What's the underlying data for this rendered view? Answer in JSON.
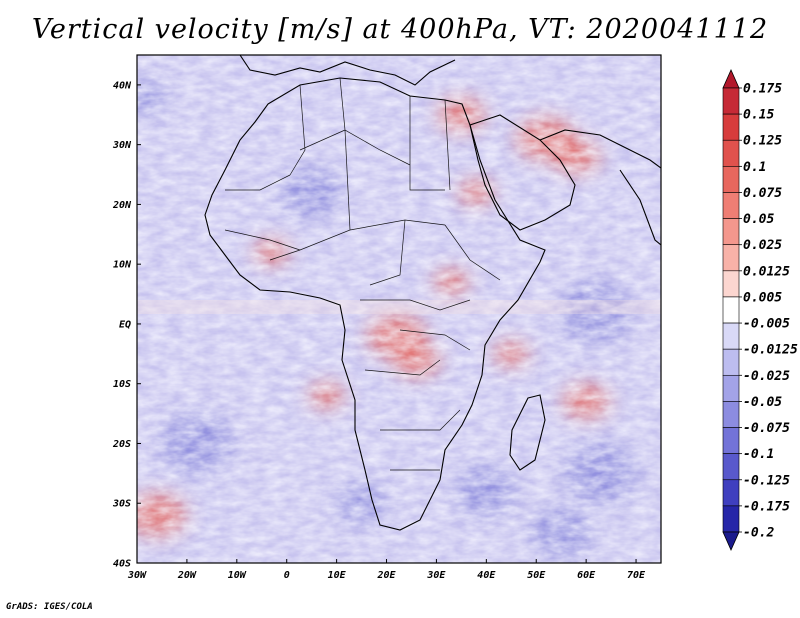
{
  "title": "Vertical velocity [m/s] at 400hPa, VT: 2020041112",
  "credit": "GrADS: IGES/COLA",
  "lat_labels": [
    "40N",
    "30N",
    "20N",
    "10N",
    "EQ",
    "10S",
    "20S",
    "30S",
    "40S"
  ],
  "lon_labels": [
    "30W",
    "20W",
    "10W",
    "0",
    "10E",
    "20E",
    "30E",
    "40E",
    "50E",
    "60E",
    "70E"
  ],
  "colorbar": {
    "levels": [
      "0.175",
      "0.15",
      "0.125",
      "0.1",
      "0.075",
      "0.05",
      "0.025",
      "0.0125",
      "0.005",
      "-0.005",
      "-0.0125",
      "-0.025",
      "-0.05",
      "-0.075",
      "-0.1",
      "-0.125",
      "-0.175",
      "-0.2"
    ],
    "colors": [
      "#b2182b",
      "#c62a36",
      "#d73c3c",
      "#e0524d",
      "#e8675e",
      "#ef7e74",
      "#f4978d",
      "#f8b2a8",
      "#fcd6d0",
      "#ffffff",
      "#d9d9f7",
      "#bdbdf0",
      "#a3a3e8",
      "#8c8ce0",
      "#7373d8",
      "#5959cc",
      "#3f3fbf",
      "#2626a8",
      "#1a1a8c"
    ]
  },
  "hotspots_red": [
    {
      "lon": 35,
      "lat": 35,
      "r": 4
    },
    {
      "lon": 52,
      "lat": 31,
      "r": 5
    },
    {
      "lon": 58,
      "lat": 28,
      "r": 4
    },
    {
      "lon": 38,
      "lat": 22,
      "r": 3
    },
    {
      "lon": 22,
      "lat": -2,
      "r": 5
    },
    {
      "lon": 26,
      "lat": -6,
      "r": 4
    },
    {
      "lon": 45,
      "lat": -5,
      "r": 3
    },
    {
      "lon": -26,
      "lat": -32,
      "r": 5
    },
    {
      "lon": 33,
      "lat": 7,
      "r": 3
    },
    {
      "lon": -3,
      "lat": 12,
      "r": 3
    },
    {
      "lon": 60,
      "lat": -13,
      "r": 4
    },
    {
      "lon": 8,
      "lat": -12,
      "r": 3
    }
  ],
  "hotspots_blue": [
    {
      "lon": -28,
      "lat": 38,
      "r": 3
    },
    {
      "lon": 62,
      "lat": 2,
      "r": 6
    },
    {
      "lon": 63,
      "lat": -25,
      "r": 6
    },
    {
      "lon": -18,
      "lat": -20,
      "r": 6
    },
    {
      "lon": 5,
      "lat": 22,
      "r": 5
    },
    {
      "lon": 55,
      "lat": -35,
      "r": 5
    },
    {
      "lon": 15,
      "lat": -30,
      "r": 4
    },
    {
      "lon": 40,
      "lat": -28,
      "r": 5
    }
  ]
}
